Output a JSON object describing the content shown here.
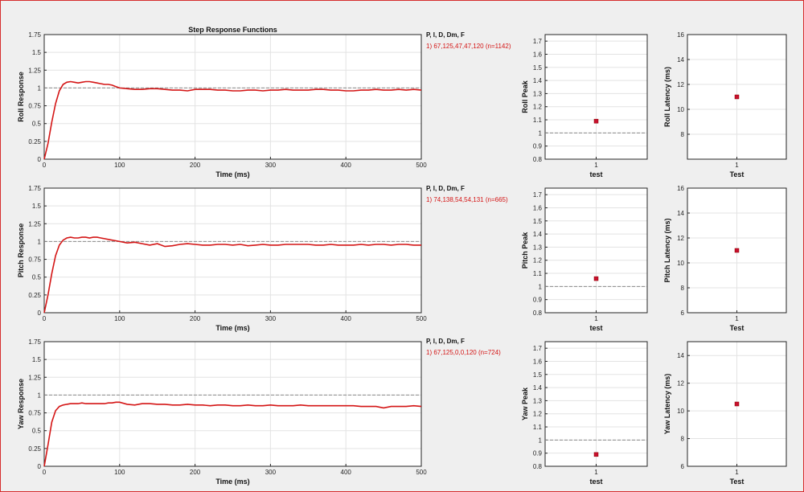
{
  "colors": {
    "response": "#d41515",
    "marker": "#c8102e",
    "reference": "#8a8a8a",
    "background": "#efefef",
    "border": "#d62e2e"
  },
  "legends": [
    {
      "header": "P, I, D, Dm, F",
      "entry": "1) 67,125,47,47,120  (n=1142)"
    },
    {
      "header": "P, I, D, Dm, F",
      "entry": "1) 74,138,54,54,131  (n=665)"
    },
    {
      "header": "P, I, D, Dm, F",
      "entry": "1) 67,125,0,0,120  (n=724)"
    }
  ],
  "chart_data": [
    {
      "type": "line",
      "title": "Step Response Functions",
      "xlabel": "Time (ms)",
      "ylabel": "Roll Response",
      "xlim": [
        0,
        500
      ],
      "ylim": [
        0,
        1.75
      ],
      "xticks": [
        0,
        100,
        200,
        300,
        400,
        500
      ],
      "yticks": [
        0,
        0.25,
        0.5,
        0.75,
        1,
        1.25,
        1.5,
        1.75
      ],
      "reference": 1,
      "series": [
        {
          "x": [
            0,
            5,
            10,
            15,
            20,
            25,
            30,
            35,
            40,
            45,
            50,
            55,
            60,
            65,
            70,
            75,
            80,
            85,
            90,
            95,
            100,
            110,
            120,
            130,
            140,
            150,
            160,
            170,
            180,
            190,
            200,
            210,
            220,
            230,
            240,
            250,
            260,
            270,
            280,
            290,
            300,
            310,
            320,
            330,
            340,
            350,
            360,
            370,
            380,
            390,
            400,
            410,
            420,
            430,
            440,
            450,
            460,
            470,
            480,
            490,
            500
          ],
          "y": [
            0,
            0.22,
            0.52,
            0.78,
            0.96,
            1.05,
            1.08,
            1.09,
            1.08,
            1.07,
            1.08,
            1.09,
            1.09,
            1.08,
            1.07,
            1.06,
            1.05,
            1.05,
            1.04,
            1.02,
            1.0,
            0.99,
            0.98,
            0.98,
            0.99,
            0.99,
            0.98,
            0.97,
            0.97,
            0.96,
            0.98,
            0.98,
            0.98,
            0.97,
            0.97,
            0.96,
            0.96,
            0.97,
            0.97,
            0.96,
            0.97,
            0.97,
            0.98,
            0.97,
            0.97,
            0.97,
            0.98,
            0.98,
            0.97,
            0.97,
            0.96,
            0.96,
            0.97,
            0.97,
            0.98,
            0.97,
            0.97,
            0.98,
            0.97,
            0.98,
            0.97
          ]
        }
      ]
    },
    {
      "type": "scatter",
      "xlabel": "test",
      "ylabel": "Roll Peak",
      "categories": [
        "1"
      ],
      "values": [
        1.09
      ],
      "ylim": [
        0.8,
        1.75
      ],
      "yticks": [
        0.8,
        0.9,
        1,
        1.1,
        1.2,
        1.3,
        1.4,
        1.5,
        1.6,
        1.7
      ],
      "reference": 1
    },
    {
      "type": "scatter",
      "xlabel": "Test",
      "ylabel": "Roll Latency (ms)",
      "categories": [
        "1"
      ],
      "values": [
        11
      ],
      "ylim": [
        6,
        16
      ],
      "yticks": [
        8,
        10,
        12,
        14,
        16
      ]
    },
    {
      "type": "line",
      "xlabel": "Time (ms)",
      "ylabel": "Pitch Response",
      "xlim": [
        0,
        500
      ],
      "ylim": [
        0,
        1.75
      ],
      "xticks": [
        0,
        100,
        200,
        300,
        400,
        500
      ],
      "yticks": [
        0,
        0.25,
        0.5,
        0.75,
        1,
        1.25,
        1.5,
        1.75
      ],
      "reference": 1,
      "series": [
        {
          "x": [
            0,
            5,
            10,
            15,
            20,
            25,
            30,
            35,
            40,
            45,
            50,
            55,
            60,
            65,
            70,
            75,
            80,
            85,
            90,
            95,
            100,
            110,
            120,
            130,
            140,
            150,
            160,
            170,
            180,
            190,
            200,
            210,
            220,
            230,
            240,
            250,
            260,
            270,
            280,
            290,
            300,
            310,
            320,
            330,
            340,
            350,
            360,
            370,
            380,
            390,
            400,
            410,
            420,
            430,
            440,
            450,
            460,
            470,
            480,
            490,
            500
          ],
          "y": [
            0,
            0.25,
            0.55,
            0.8,
            0.95,
            1.02,
            1.05,
            1.06,
            1.05,
            1.05,
            1.06,
            1.06,
            1.05,
            1.06,
            1.06,
            1.05,
            1.04,
            1.03,
            1.02,
            1.01,
            1.0,
            0.98,
            0.99,
            0.97,
            0.95,
            0.97,
            0.93,
            0.94,
            0.96,
            0.97,
            0.96,
            0.95,
            0.95,
            0.96,
            0.96,
            0.95,
            0.96,
            0.94,
            0.95,
            0.96,
            0.95,
            0.95,
            0.96,
            0.96,
            0.96,
            0.96,
            0.95,
            0.95,
            0.96,
            0.95,
            0.95,
            0.95,
            0.96,
            0.95,
            0.96,
            0.96,
            0.95,
            0.96,
            0.96,
            0.95,
            0.95
          ]
        }
      ]
    },
    {
      "type": "scatter",
      "xlabel": "test",
      "ylabel": "Pitch Peak",
      "categories": [
        "1"
      ],
      "values": [
        1.06
      ],
      "ylim": [
        0.8,
        1.75
      ],
      "yticks": [
        0.8,
        0.9,
        1,
        1.1,
        1.2,
        1.3,
        1.4,
        1.5,
        1.6,
        1.7
      ],
      "reference": 1
    },
    {
      "type": "scatter",
      "xlabel": "Test",
      "ylabel": "Pitch Latency (ms)",
      "categories": [
        "1"
      ],
      "values": [
        11
      ],
      "ylim": [
        6,
        16
      ],
      "yticks": [
        6,
        8,
        10,
        12,
        14,
        16
      ]
    },
    {
      "type": "line",
      "xlabel": "Time (ms)",
      "ylabel": "Yaw Response",
      "xlim": [
        0,
        500
      ],
      "ylim": [
        0,
        1.75
      ],
      "xticks": [
        0,
        100,
        200,
        300,
        400,
        500
      ],
      "yticks": [
        0,
        0.25,
        0.5,
        0.75,
        1,
        1.25,
        1.5,
        1.75
      ],
      "reference": 1,
      "series": [
        {
          "x": [
            0,
            5,
            10,
            15,
            20,
            25,
            30,
            35,
            40,
            45,
            50,
            55,
            60,
            65,
            70,
            75,
            80,
            85,
            90,
            95,
            100,
            110,
            120,
            130,
            140,
            150,
            160,
            170,
            180,
            190,
            200,
            210,
            220,
            230,
            240,
            250,
            260,
            270,
            280,
            290,
            300,
            310,
            320,
            330,
            340,
            350,
            360,
            370,
            380,
            390,
            400,
            410,
            420,
            430,
            440,
            450,
            460,
            470,
            480,
            490,
            500
          ],
          "y": [
            0,
            0.3,
            0.62,
            0.78,
            0.84,
            0.86,
            0.87,
            0.88,
            0.88,
            0.88,
            0.89,
            0.88,
            0.88,
            0.88,
            0.88,
            0.88,
            0.88,
            0.89,
            0.89,
            0.9,
            0.9,
            0.87,
            0.86,
            0.88,
            0.88,
            0.87,
            0.87,
            0.86,
            0.86,
            0.87,
            0.86,
            0.86,
            0.85,
            0.86,
            0.86,
            0.85,
            0.85,
            0.86,
            0.85,
            0.85,
            0.86,
            0.85,
            0.85,
            0.85,
            0.86,
            0.85,
            0.85,
            0.85,
            0.85,
            0.85,
            0.85,
            0.85,
            0.84,
            0.84,
            0.84,
            0.82,
            0.84,
            0.84,
            0.84,
            0.85,
            0.84
          ]
        }
      ]
    },
    {
      "type": "scatter",
      "xlabel": "test",
      "ylabel": "Yaw Peak",
      "categories": [
        "1"
      ],
      "values": [
        0.89
      ],
      "ylim": [
        0.8,
        1.75
      ],
      "yticks": [
        0.8,
        0.9,
        1,
        1.1,
        1.2,
        1.3,
        1.4,
        1.5,
        1.6,
        1.7
      ],
      "reference": 1
    },
    {
      "type": "scatter",
      "xlabel": "Test",
      "ylabel": "Yaw Latency (ms)",
      "categories": [
        "1"
      ],
      "values": [
        10.5
      ],
      "ylim": [
        6,
        15
      ],
      "yticks": [
        6,
        8,
        10,
        12,
        14
      ]
    }
  ]
}
